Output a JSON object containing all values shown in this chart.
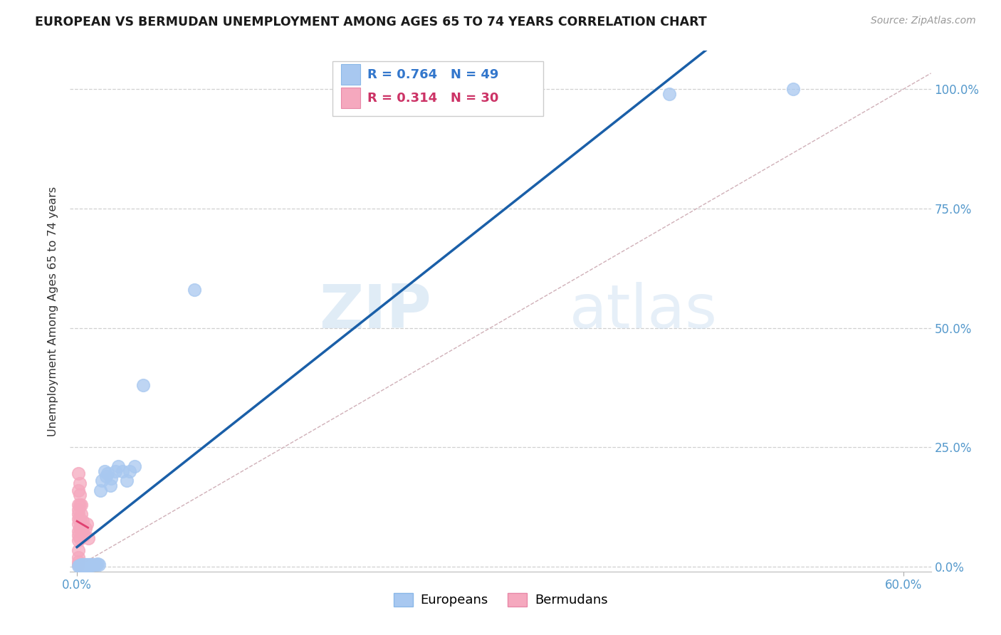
{
  "title": "EUROPEAN VS BERMUDAN UNEMPLOYMENT AMONG AGES 65 TO 74 YEARS CORRELATION CHART",
  "source": "Source: ZipAtlas.com",
  "ylabel": "Unemployment Among Ages 65 to 74 years",
  "xlim": [
    -0.005,
    0.62
  ],
  "ylim": [
    -0.01,
    1.08
  ],
  "x_ticks": [
    0.0,
    0.6
  ],
  "x_tick_labels": [
    "0.0%",
    "60.0%"
  ],
  "y_ticks": [
    0.0,
    0.25,
    0.5,
    0.75,
    1.0
  ],
  "y_tick_labels_right": [
    "0.0%",
    "25.0%",
    "50.0%",
    "75.0%",
    "100.0%"
  ],
  "european_R": 0.764,
  "european_N": 49,
  "bermudan_R": 0.314,
  "bermudan_N": 30,
  "european_color": "#a8c8f0",
  "european_line_color": "#1a5fa8",
  "bermudan_color": "#f5a8be",
  "bermudan_line_color": "#e04070",
  "diagonal_color": "#d0b0b8",
  "background_color": "#ffffff",
  "watermark_zip": "ZIP",
  "watermark_atlas": "atlas",
  "european_x": [
    0.001,
    0.002,
    0.002,
    0.003,
    0.003,
    0.003,
    0.004,
    0.004,
    0.005,
    0.005,
    0.005,
    0.006,
    0.006,
    0.006,
    0.006,
    0.007,
    0.007,
    0.007,
    0.008,
    0.008,
    0.009,
    0.009,
    0.01,
    0.01,
    0.011,
    0.011,
    0.012,
    0.013,
    0.014,
    0.015,
    0.016,
    0.017,
    0.018,
    0.02,
    0.021,
    0.022,
    0.024,
    0.025,
    0.028,
    0.03,
    0.033,
    0.036,
    0.038,
    0.042,
    0.048,
    0.085,
    0.32,
    0.43,
    0.52
  ],
  "european_y": [
    0.002,
    0.002,
    0.003,
    0.002,
    0.003,
    0.004,
    0.002,
    0.003,
    0.002,
    0.003,
    0.004,
    0.003,
    0.004,
    0.005,
    0.003,
    0.002,
    0.003,
    0.004,
    0.003,
    0.004,
    0.003,
    0.004,
    0.004,
    0.005,
    0.003,
    0.004,
    0.005,
    0.004,
    0.005,
    0.006,
    0.005,
    0.16,
    0.18,
    0.2,
    0.19,
    0.195,
    0.17,
    0.185,
    0.2,
    0.21,
    0.2,
    0.18,
    0.2,
    0.21,
    0.38,
    0.58,
    1.0,
    0.99,
    1.0
  ],
  "bermudan_x": [
    0.001,
    0.001,
    0.001,
    0.001,
    0.001,
    0.001,
    0.001,
    0.001,
    0.001,
    0.001,
    0.001,
    0.001,
    0.001,
    0.001,
    0.002,
    0.002,
    0.002,
    0.002,
    0.002,
    0.002,
    0.002,
    0.003,
    0.003,
    0.003,
    0.004,
    0.004,
    0.005,
    0.006,
    0.007,
    0.008
  ],
  "bermudan_y": [
    0.005,
    0.01,
    0.02,
    0.035,
    0.055,
    0.065,
    0.075,
    0.09,
    0.1,
    0.11,
    0.12,
    0.13,
    0.16,
    0.195,
    0.06,
    0.08,
    0.1,
    0.13,
    0.15,
    0.175,
    0.08,
    0.09,
    0.11,
    0.13,
    0.075,
    0.095,
    0.065,
    0.08,
    0.09,
    0.06
  ]
}
